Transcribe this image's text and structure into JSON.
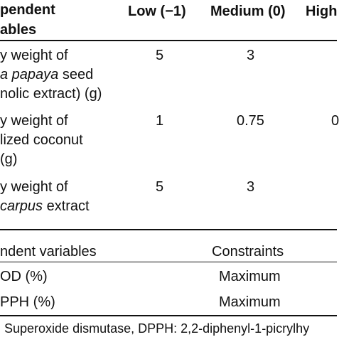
{
  "header": {
    "col1_line1": "pendent",
    "col1_line2": "ables",
    "low": "Low (−1)",
    "medium": "Medium (0)",
    "high": "High"
  },
  "rows": [
    {
      "line1": "y weight of",
      "line2_italic": "a papaya",
      "line2_rest": " seed",
      "line3": "nolic extract) (g)",
      "low": "5",
      "medium": "3",
      "high": ""
    },
    {
      "line1": "y weight of",
      "line2": "lized coconut",
      "line3": "(g)",
      "low": "1",
      "medium": "0.75",
      "high": "0"
    },
    {
      "line1": "y weight of",
      "line2_italic": "carpus",
      "line2_rest": " extract",
      "low": "5",
      "medium": "3",
      "high": ""
    }
  ],
  "dependent": {
    "header_col1": "ndent variables",
    "header_col2": "Constraints",
    "rows": [
      {
        "name": "OD (%)",
        "constraint": "Maximum"
      },
      {
        "name": "PPH (%)",
        "constraint": "Maximum"
      }
    ]
  },
  "footnote": "Superoxide dismutase, DPPH: 2,2-diphenyl-1-picrylhy"
}
